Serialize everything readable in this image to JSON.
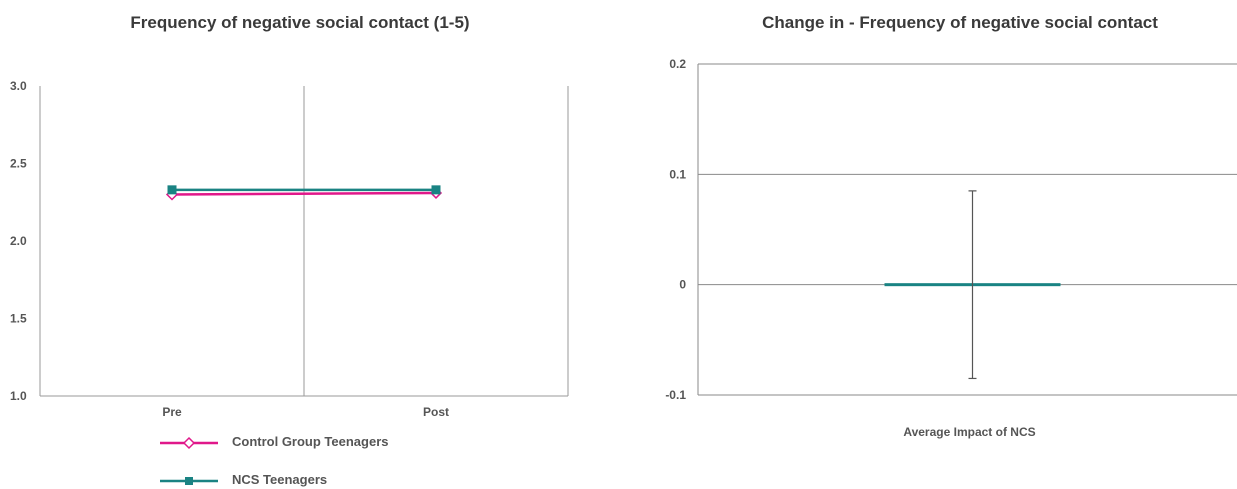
{
  "chart_data": [
    {
      "type": "line",
      "title": "Frequency of negative social contact (1-5)",
      "categories": [
        "Pre",
        "Post"
      ],
      "ylim": [
        1.0,
        3.0
      ],
      "yticks": [
        "3.0",
        "2.5",
        "2.0",
        "1.5",
        "1.0"
      ],
      "series": [
        {
          "name": "Control Group Teenagers",
          "values": [
            2.3,
            2.31
          ],
          "color": "#e0188a",
          "marker": "diamond-open"
        },
        {
          "name": "NCS Teenagers",
          "values": [
            2.33,
            2.33
          ],
          "color": "#1a8383",
          "marker": "square"
        }
      ],
      "legend_position": "bottom"
    },
    {
      "type": "bar",
      "title": "Change in - Frequency of negative social contact",
      "categories": [
        "Average Impact of NCS"
      ],
      "values": [
        -0.002
      ],
      "error": {
        "low": -0.085,
        "high": 0.085
      },
      "ylim": [
        -0.1,
        0.2
      ],
      "yticks": [
        "0.2",
        "0.1",
        "0",
        "-0.1"
      ],
      "color": "#1a8383"
    }
  ]
}
